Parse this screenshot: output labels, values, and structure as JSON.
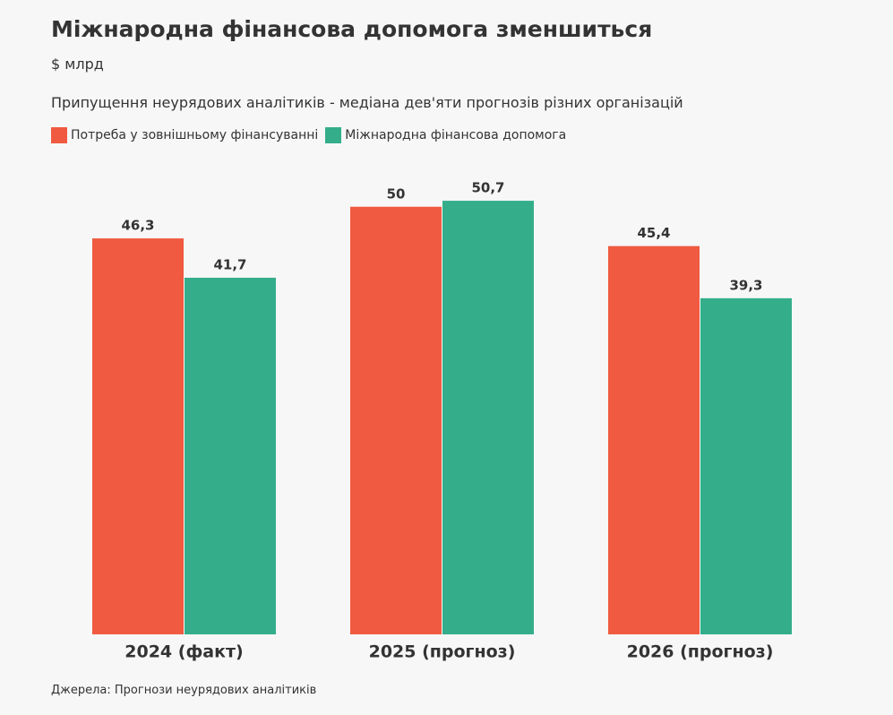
{
  "chart_data": {
    "type": "bar",
    "title": "Міжнародна фінансова допомога зменшиться",
    "subtitle": "$ млрд",
    "note": "Припущення неурядових аналітиків - медіана дев'яти прогнозів різних організацій",
    "source": "Джерела: Прогнози неурядових аналітиків",
    "categories": [
      "2024 (факт)",
      "2025 (прогноз)",
      "2026 (прогноз)"
    ],
    "series": [
      {
        "name": "Потреба у зовнішньому фінансуванні",
        "color": "#f05a40",
        "values": [
          46.3,
          50,
          45.4
        ],
        "value_labels": [
          "46,3",
          "50",
          "45,4"
        ]
      },
      {
        "name": "Міжнародна фінансова допомога",
        "color": "#34ae8a",
        "values": [
          41.7,
          50.7,
          39.3
        ],
        "value_labels": [
          "41,7",
          "50,7",
          "39,3"
        ]
      }
    ]
  }
}
